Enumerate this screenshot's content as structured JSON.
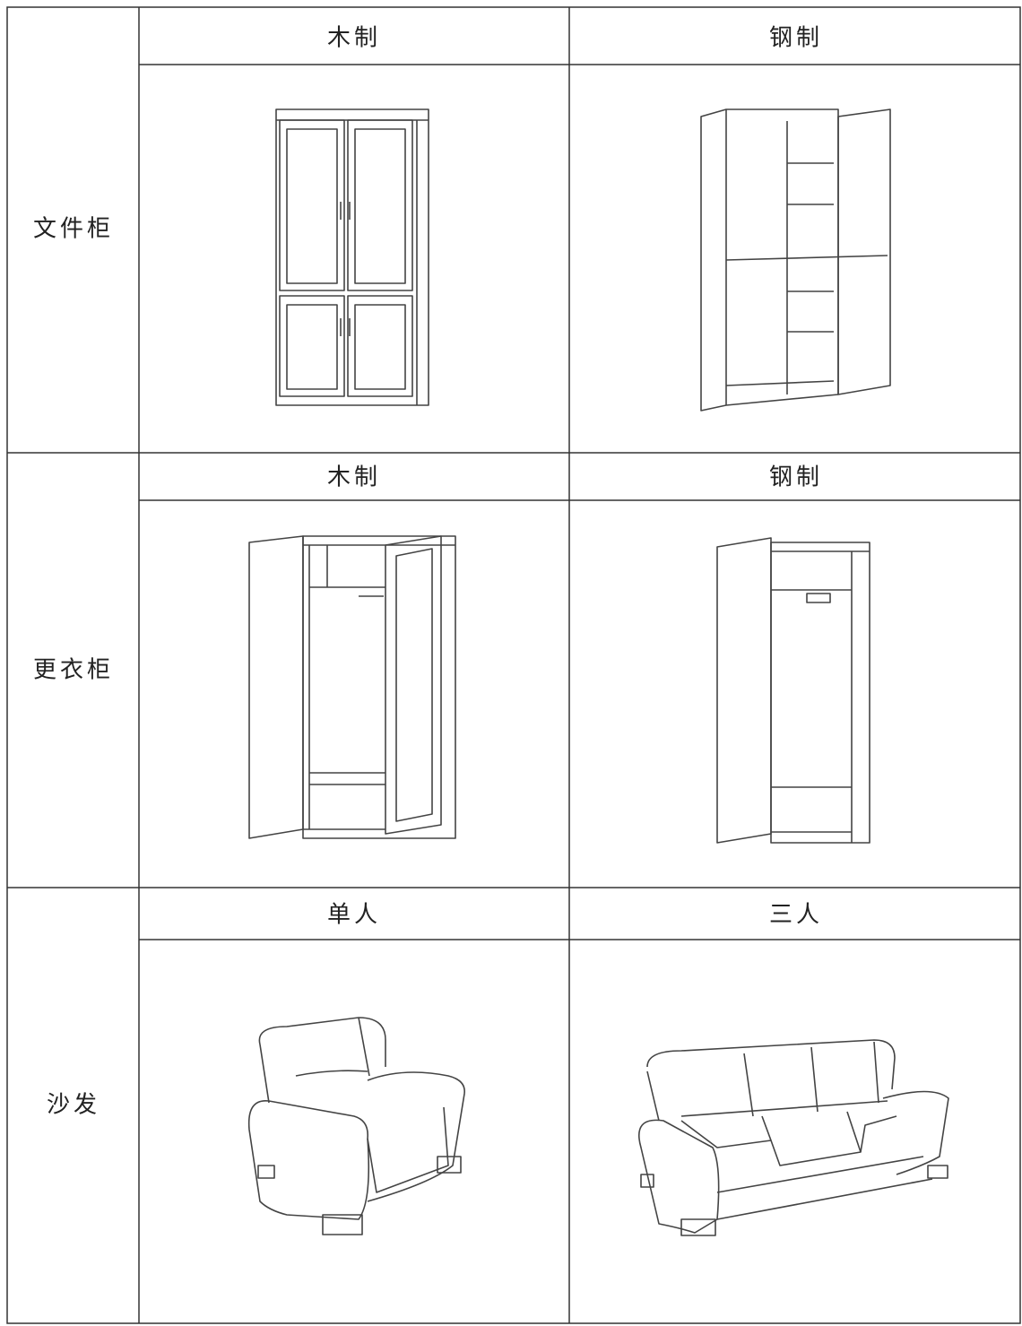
{
  "table": {
    "rows": [
      {
        "label": "文件柜",
        "headers": [
          "木制",
          "钢制"
        ]
      },
      {
        "label": "更衣柜",
        "headers": [
          "木制",
          "钢制"
        ]
      },
      {
        "label": "沙发",
        "headers": [
          "单人",
          "三人"
        ]
      }
    ]
  }
}
